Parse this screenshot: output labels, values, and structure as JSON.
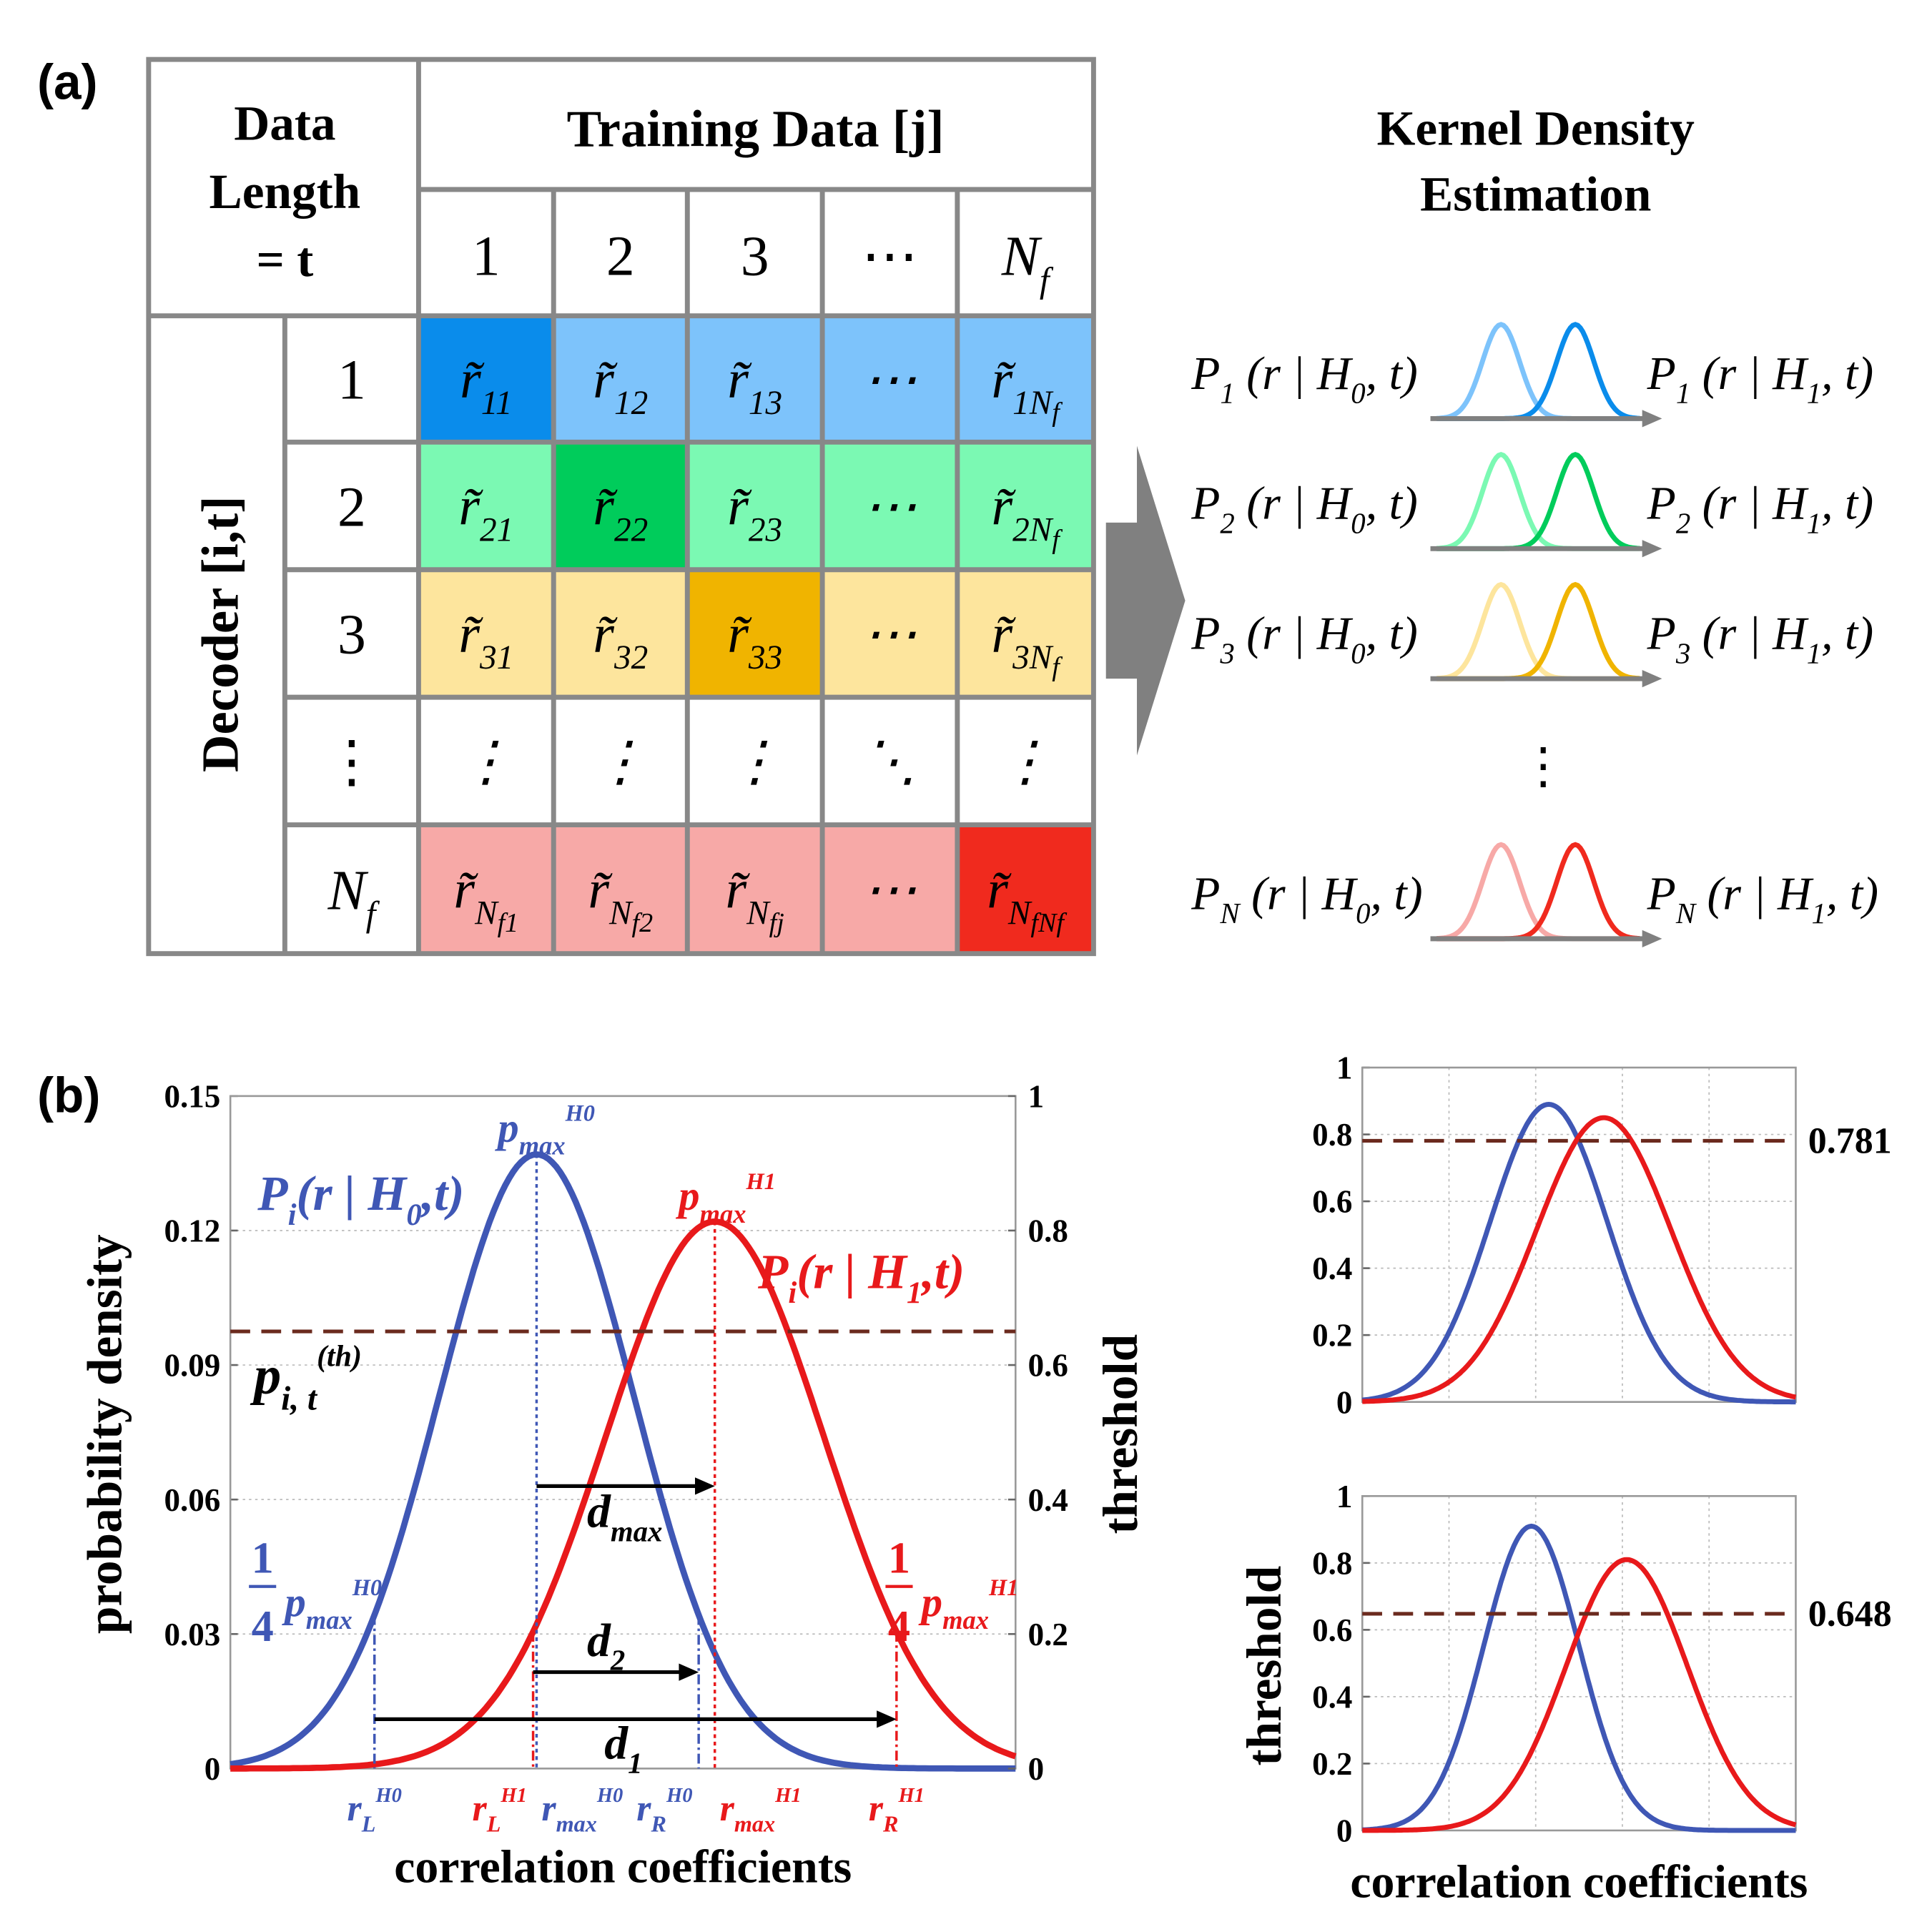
{
  "panel_a": {
    "label": "(a)",
    "corner_header": [
      "Data",
      "Length",
      "= t"
    ],
    "training_header": "Training Data [j]",
    "columns": [
      {
        "main": "1",
        "sub": "",
        "subsub": ""
      },
      {
        "main": "2",
        "sub": "",
        "subsub": ""
      },
      {
        "main": "3",
        "sub": "",
        "subsub": ""
      },
      {
        "main": "⋯",
        "sub": "",
        "subsub": ""
      },
      {
        "main": "N",
        "sub": "f",
        "subsub": ""
      }
    ],
    "decoder_label": "Decoder [i,t]",
    "rows": [
      {
        "label": {
          "main": "1",
          "sub": ""
        },
        "light": "#7DC3FB",
        "dark": "#0A8CEB",
        "dark_index": 0,
        "cells": [
          {
            "main": "r̃",
            "sub": "11",
            "subsub": ""
          },
          {
            "main": "r̃",
            "sub": "12",
            "subsub": ""
          },
          {
            "main": "r̃",
            "sub": "13",
            "subsub": ""
          },
          {
            "main": "⋯",
            "sub": "",
            "subsub": ""
          },
          {
            "main": "r̃",
            "sub": "1N",
            "subsub": "f"
          }
        ]
      },
      {
        "label": {
          "main": "2",
          "sub": ""
        },
        "light": "#7BF9B3",
        "dark": "#00CC5B",
        "dark_index": 1,
        "cells": [
          {
            "main": "r̃",
            "sub": "21",
            "subsub": ""
          },
          {
            "main": "r̃",
            "sub": "22",
            "subsub": ""
          },
          {
            "main": "r̃",
            "sub": "23",
            "subsub": ""
          },
          {
            "main": "⋯",
            "sub": "",
            "subsub": ""
          },
          {
            "main": "r̃",
            "sub": "2N",
            "subsub": "f"
          }
        ]
      },
      {
        "label": {
          "main": "3",
          "sub": ""
        },
        "light": "#FDE59D",
        "dark": "#F0B400",
        "dark_index": 2,
        "cells": [
          {
            "main": "r̃",
            "sub": "31",
            "subsub": ""
          },
          {
            "main": "r̃",
            "sub": "32",
            "subsub": ""
          },
          {
            "main": "r̃",
            "sub": "33",
            "subsub": ""
          },
          {
            "main": "⋯",
            "sub": "",
            "subsub": ""
          },
          {
            "main": "r̃",
            "sub": "3N",
            "subsub": "f"
          }
        ]
      },
      {
        "label": {
          "main": "⋮",
          "sub": ""
        },
        "light": "#FFFFFF",
        "dark": "#FFFFFF",
        "dark_index": -1,
        "cells": [
          {
            "main": "⋮",
            "sub": "",
            "subsub": ""
          },
          {
            "main": "⋮",
            "sub": "",
            "subsub": ""
          },
          {
            "main": "⋮",
            "sub": "",
            "subsub": ""
          },
          {
            "main": "⋱",
            "sub": "",
            "subsub": ""
          },
          {
            "main": "⋮",
            "sub": "",
            "subsub": ""
          }
        ]
      },
      {
        "label": {
          "main": "N",
          "sub": "f"
        },
        "light": "#F7A9A7",
        "dark": "#F02A1E",
        "dark_index": 4,
        "cells": [
          {
            "main": "r̃",
            "sub": "N",
            "subsub": "f1"
          },
          {
            "main": "r̃",
            "sub": "N",
            "subsub": "f2"
          },
          {
            "main": "r̃",
            "sub": "N",
            "subsub": "fj"
          },
          {
            "main": "⋯",
            "sub": "",
            "subsub": ""
          },
          {
            "main": "r̃",
            "sub": "N",
            "subsub": "fNf"
          }
        ]
      }
    ],
    "kde_title": [
      "Kernel Density",
      "Estimation"
    ],
    "kde_rows": [
      {
        "index": "1",
        "light": "#7DC3FB",
        "dark": "#0A8CEB"
      },
      {
        "index": "2",
        "light": "#7BF9B3",
        "dark": "#00CC5B"
      },
      {
        "index": "3",
        "light": "#FDE59D",
        "dark": "#F0B400"
      },
      {
        "index": "Nf",
        "light": "#F7A9A7",
        "dark": "#F02A1E"
      }
    ],
    "kde_ellipsis": "⋮",
    "kde_hyp": [
      "0",
      "1"
    ]
  },
  "panel_b": {
    "label": "(b)",
    "annotations": {
      "p_h0": [
        [
          "P",
          "i"
        ],
        [
          "i",
          "sub"
        ],
        [
          "(r | H",
          "i"
        ],
        [
          "0",
          "sub"
        ],
        [
          ",t)",
          "i"
        ]
      ],
      "p_h1": [
        [
          "P",
          "i"
        ],
        [
          "i",
          "sub"
        ],
        [
          "(r | H",
          "i"
        ],
        [
          "1",
          "sub"
        ],
        [
          ",t)",
          "i"
        ]
      ],
      "pmax_h0": [
        [
          "p",
          "i"
        ],
        [
          "max",
          "sub"
        ],
        [
          "H0",
          "sup"
        ]
      ],
      "pmax_h1": [
        [
          "p",
          "i"
        ],
        [
          "max",
          "sub"
        ],
        [
          "H1",
          "sup"
        ]
      ],
      "p_th": [
        [
          "p",
          "i"
        ],
        [
          "i, t",
          "sub"
        ],
        [
          "(th)",
          "sup"
        ]
      ],
      "d_max": [
        [
          "d",
          "i"
        ],
        [
          "max",
          "sub"
        ]
      ],
      "d_2": [
        [
          "d",
          "i"
        ],
        [
          "2",
          "sub"
        ]
      ],
      "d_1": [
        [
          "d",
          "i"
        ],
        [
          "1",
          "sub"
        ]
      ],
      "quarter": "1",
      "quarter_den": "4",
      "r_labels": [
        {
          "parts": [
            [
              "r",
              "i"
            ],
            [
              "L",
              "sub"
            ],
            [
              "H0",
              "sup"
            ]
          ],
          "hyp": 0
        },
        {
          "parts": [
            [
              "r",
              "i"
            ],
            [
              "L",
              "sub"
            ],
            [
              "H1",
              "sup"
            ]
          ],
          "hyp": 1
        },
        {
          "parts": [
            [
              "r",
              "i"
            ],
            [
              "max",
              "sub"
            ],
            [
              "H0",
              "sup"
            ]
          ],
          "hyp": 0
        },
        {
          "parts": [
            [
              "r",
              "i"
            ],
            [
              "R",
              "sub"
            ],
            [
              "H0",
              "sup"
            ]
          ],
          "hyp": 0
        },
        {
          "parts": [
            [
              "r",
              "i"
            ],
            [
              "max",
              "sub"
            ],
            [
              "H1",
              "sup"
            ]
          ],
          "hyp": 1
        },
        {
          "parts": [
            [
              "r",
              "i"
            ],
            [
              "R",
              "sub"
            ],
            [
              "H1",
              "sup"
            ]
          ],
          "hyp": 1
        }
      ]
    }
  },
  "chart_data": [
    {
      "type": "line",
      "id": "main",
      "xlabel": "correlation coefficients",
      "ylabel": "probability density",
      "ylabel_right": "threshold",
      "ylim": [
        0,
        0.15
      ],
      "ylim_right": [
        0,
        1
      ],
      "yticks": [
        "0",
        "0.03",
        "0.06",
        "0.09",
        "0.12",
        "0.15"
      ],
      "yticks_right": [
        "0",
        "0.2",
        "0.4",
        "0.6",
        "0.8",
        "1"
      ],
      "xlim": [
        0,
        1
      ],
      "grid": true,
      "threshold": 0.0975,
      "series": [
        {
          "name": "P_i(r|H0,t)",
          "color": "#3F57B5",
          "peak": 0.137,
          "mu": 0.39,
          "sigma": 0.124
        },
        {
          "name": "P_i(r|H1,t)",
          "color": "#E8191B",
          "peak": 0.122,
          "mu": 0.617,
          "sigma": 0.139
        }
      ]
    },
    {
      "type": "line",
      "id": "top-right",
      "ylim": [
        0,
        1
      ],
      "yticks": [
        "0",
        "0.2",
        "0.4",
        "0.6",
        "0.8",
        "1"
      ],
      "xlim": [
        0,
        1
      ],
      "grid": true,
      "threshold": 0.781,
      "threshold_label": "0.781",
      "series": [
        {
          "name": "H0",
          "color": "#3F57B5",
          "peak": 0.89,
          "mu": 0.43,
          "sigma": 0.135
        },
        {
          "name": "H1",
          "color": "#E8191B",
          "peak": 0.85,
          "mu": 0.557,
          "sigma": 0.155
        }
      ]
    },
    {
      "type": "line",
      "id": "bottom-right",
      "xlabel": "correlation coefficients",
      "ylabel": "threshold",
      "ylim": [
        0,
        1
      ],
      "yticks": [
        "0",
        "0.2",
        "0.4",
        "0.6",
        "0.8",
        "1"
      ],
      "xlim": [
        0,
        1
      ],
      "grid": true,
      "threshold": 0.648,
      "threshold_label": "0.648",
      "series": [
        {
          "name": "H0",
          "color": "#3F57B5",
          "peak": 0.91,
          "mu": 0.39,
          "sigma": 0.11
        },
        {
          "name": "H1",
          "color": "#E8191B",
          "peak": 0.81,
          "mu": 0.61,
          "sigma": 0.14
        }
      ]
    }
  ]
}
